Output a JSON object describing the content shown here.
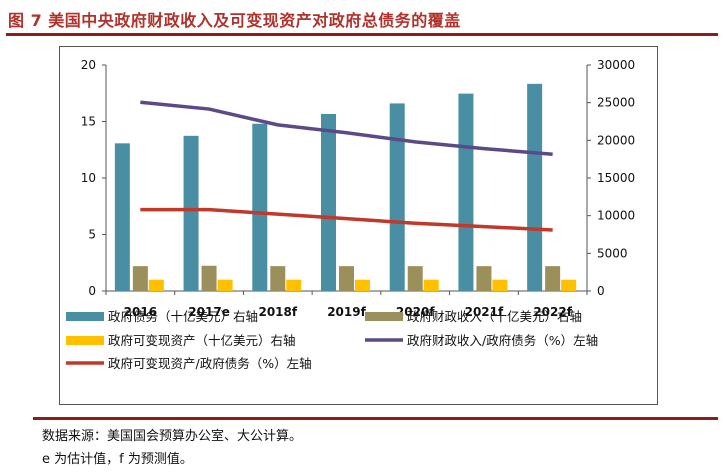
{
  "title": "图 7  美国中央政府财政收入及可变现资产对政府总债务的覆盖",
  "notes": {
    "source": "数据来源：美国国会预算办公室、大公计算。",
    "legend_note": "e 为估计值，f 为预测值。"
  },
  "colors": {
    "title": "#b0322c",
    "rule": "#8c1d18",
    "debt_bar": "#4a8ea4",
    "revenue_bar": "#9b8f5c",
    "assets_bar": "#ffc000",
    "revenue_ratio_line": "#5b4a87",
    "assets_ratio_line": "#c0392b"
  },
  "chart_data": {
    "type": "bar+line",
    "categories": [
      "2016",
      "2017e",
      "2018f",
      "2019f",
      "2020f",
      "2021f",
      "2022f"
    ],
    "left_axis": {
      "min": 0,
      "max": 20,
      "ticks": [
        0,
        5,
        10,
        15,
        20
      ]
    },
    "right_axis": {
      "min": 0,
      "max": 30000,
      "ticks": [
        0,
        5000,
        10000,
        15000,
        20000,
        25000,
        30000
      ]
    },
    "series": [
      {
        "name": "政府债务（十亿美元）右轴",
        "type": "bar",
        "axis": "right",
        "values": [
          19600,
          20600,
          22200,
          23500,
          24900,
          26200,
          27500
        ]
      },
      {
        "name": "政府财政收入（十亿美元）右轴",
        "type": "bar",
        "axis": "right",
        "values": [
          3300,
          3350,
          3300,
          3300,
          3300,
          3300,
          3300
        ]
      },
      {
        "name": "政府可变现资产（十亿美元）右轴",
        "type": "bar",
        "axis": "right",
        "values": [
          1500,
          1500,
          1500,
          1500,
          1500,
          1500,
          1500
        ]
      },
      {
        "name": "政府财政收入/政府债务（%）左轴",
        "type": "line",
        "axis": "left",
        "values": [
          16.7,
          16.1,
          14.7,
          14.0,
          13.2,
          12.6,
          12.1
        ]
      },
      {
        "name": "政府可变现资产/政府债务（%）左轴",
        "type": "line",
        "axis": "left",
        "values": [
          7.2,
          7.2,
          6.8,
          6.4,
          6.0,
          5.7,
          5.4
        ]
      }
    ],
    "legend_position": "bottom"
  }
}
